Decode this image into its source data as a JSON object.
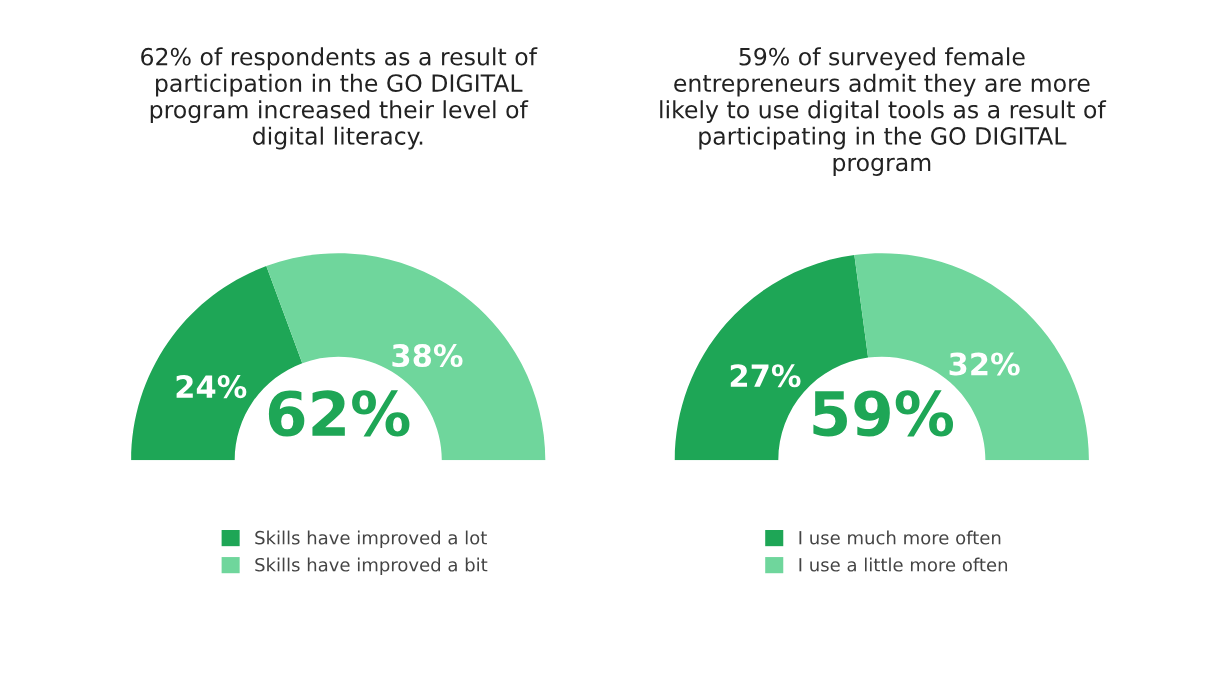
{
  "chart_data": [
    {
      "type": "donut",
      "title": "62% of respondents as a result of participation in the GO DIGITAL program increased their level of digital literacy.",
      "categories": [
        "Skills have improved a lot",
        "Skills have improved a bit"
      ],
      "values": [
        24,
        38
      ],
      "colors": [
        "#1ea656",
        "#6fd69c"
      ],
      "value_labels": [
        "24%",
        "38%"
      ],
      "annotations": [
        "62%"
      ],
      "legend": "bottom"
    },
    {
      "type": "donut",
      "title": "59% of surveyed female entrepreneurs admit they are more likely to use digital tools as a result of participating in the GO DIGITAL program",
      "categories": [
        "I use much more often",
        "I use a little more often"
      ],
      "values": [
        27,
        32
      ],
      "colors": [
        "#1ea656",
        "#6fd69c"
      ],
      "value_labels": [
        "27%",
        "32%"
      ],
      "annotations": [
        "59%"
      ],
      "legend": "bottom"
    }
  ]
}
